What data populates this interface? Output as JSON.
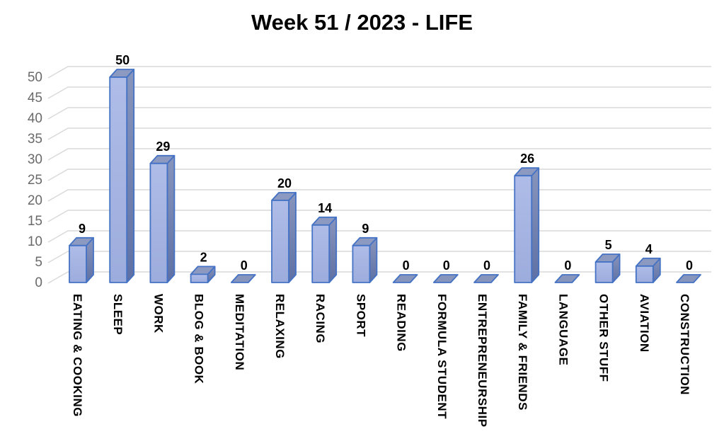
{
  "header": {
    "title": "Week 51 / 2023 - LIFE"
  },
  "chart_data": {
    "type": "bar",
    "style": "3d-column",
    "title": "Week 51 / 2023 - LIFE",
    "categories": [
      "EATING & COOKING",
      "SLEEP",
      "WORK",
      "BLOG & BOOK",
      "MEDITATION",
      "RELAXING",
      "RACING",
      "SPORT",
      "READING",
      "FORMULA STUDENT",
      "ENTREPRENEURSHIP",
      "FAMILY & FRIENDS",
      "LANGUAGE",
      "OTHER STUFF",
      "AVIATION",
      "CONSTRUCTION"
    ],
    "values": [
      9,
      50,
      29,
      2,
      0,
      20,
      14,
      9,
      0,
      0,
      0,
      26,
      0,
      5,
      4,
      0
    ],
    "data_labels": [
      "9",
      "50",
      "29",
      "2",
      "0",
      "20",
      "14",
      "9",
      "0",
      "0",
      "0",
      "26",
      "0",
      "5",
      "4",
      "0"
    ],
    "yticks": [
      0,
      5,
      10,
      15,
      20,
      25,
      30,
      35,
      40,
      45,
      50
    ],
    "ylim": [
      0,
      50
    ],
    "xlabel": "",
    "ylabel": "",
    "grid": true,
    "legend": "none",
    "colors": {
      "bar_front_top": "#AFBCE8",
      "bar_front_bottom": "#9CACDC",
      "bar_side_top": "#8895BC",
      "bar_side_bottom": "#5E70A4",
      "bar_top_face": "#8C99C0",
      "bar_zero_face": "#8794BC",
      "bar_outline": "#4472C4",
      "gridline": "#D9D9D9",
      "tick_label": "#6A6A6A",
      "data_label": "#000000",
      "category_label": "#000000",
      "title": "#000000"
    }
  }
}
